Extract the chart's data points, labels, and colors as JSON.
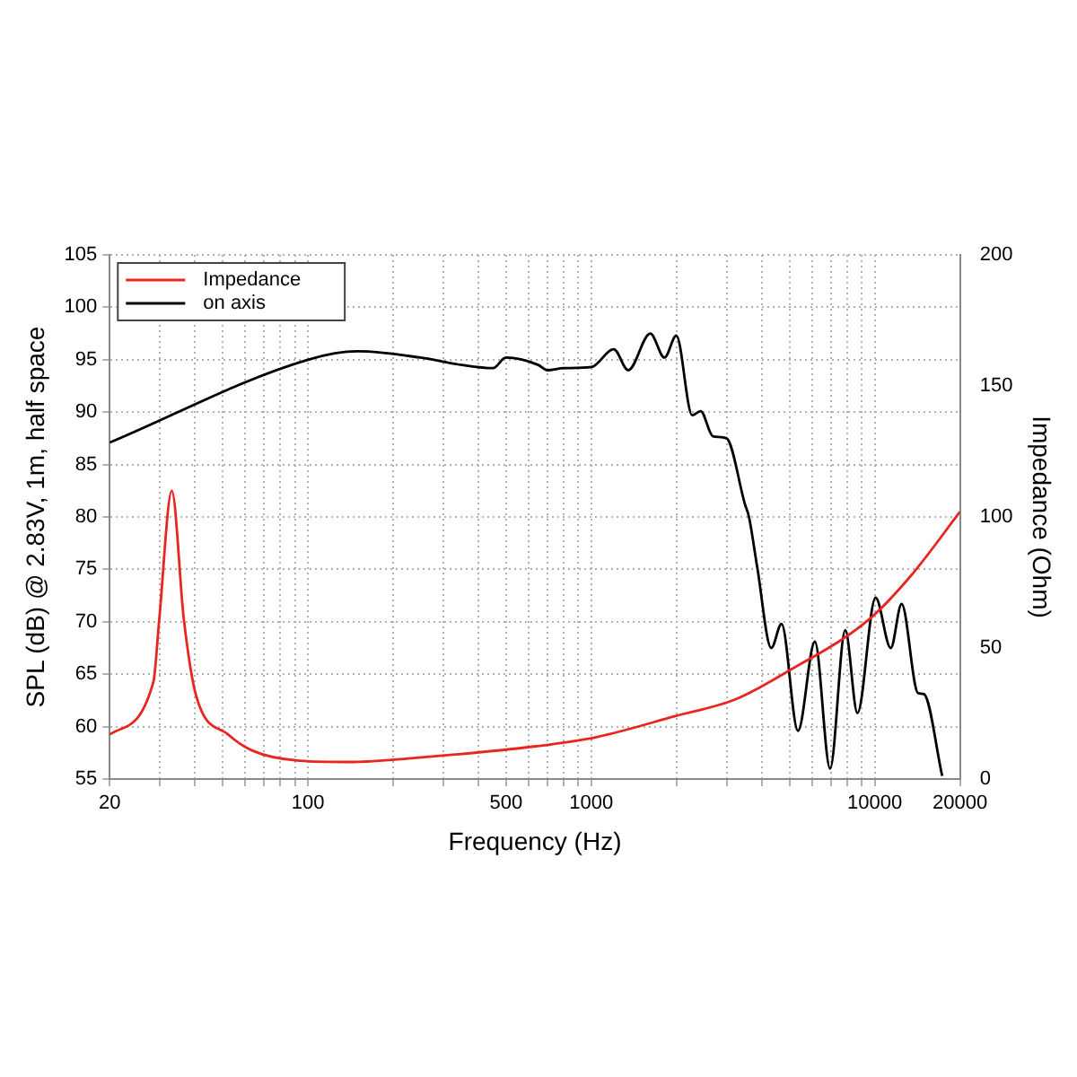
{
  "chart_data": {
    "type": "line",
    "xlabel": "Frequency (Hz)",
    "ylabel": "SPL (dB) @ 2.83V, 1m, half space",
    "y2label": "Impedance (Ohm)",
    "log": "x",
    "grid": true,
    "legend": "top left",
    "marker": "none",
    "line_style": "solid",
    "xlim": [
      20,
      20000
    ],
    "xticks": [
      20,
      {
        "value": 30,
        "label": null
      },
      {
        "value": 40,
        "label": null
      },
      {
        "value": 50,
        "label": null
      },
      {
        "value": 60,
        "label": null
      },
      {
        "value": 70,
        "label": null
      },
      {
        "value": 80,
        "label": null
      },
      {
        "value": 90,
        "label": null
      },
      100,
      {
        "value": 200,
        "label": null
      },
      {
        "value": 300,
        "label": null
      },
      {
        "value": 400,
        "label": null
      },
      500,
      {
        "value": 600,
        "label": null
      },
      {
        "value": 700,
        "label": null
      },
      {
        "value": 800,
        "label": null
      },
      {
        "value": 900,
        "label": null
      },
      1000,
      {
        "value": 2000,
        "label": null
      },
      {
        "value": 3000,
        "label": null
      },
      {
        "value": 4000,
        "label": null
      },
      {
        "value": 5000,
        "label": null
      },
      {
        "value": 6000,
        "label": null
      },
      {
        "value": 7000,
        "label": null
      },
      {
        "value": 8000,
        "label": null
      },
      {
        "value": 9000,
        "label": null
      },
      10000,
      20000
    ],
    "ylim": [
      55,
      105
    ],
    "yticks": [
      55,
      60,
      65,
      70,
      75,
      80,
      85,
      90,
      95,
      100,
      105
    ],
    "y2lim": [
      0,
      200
    ],
    "y2ticks": [
      0,
      50,
      100,
      150,
      200
    ],
    "series": [
      {
        "name": "Impedance",
        "color": "#e8251f",
        "axis": "y2",
        "x": [
          20,
          28.5,
          29.9,
          33.1,
          36.5,
          40.3,
          52.3,
          63.2,
          93.2,
          145,
          236,
          637,
          1042,
          1977,
          3240,
          4925,
          9570,
          13520,
          20000
        ],
        "values": [
          17,
          37,
          61,
          110,
          61,
          32,
          17,
          11,
          7,
          6.5,
          8,
          12.5,
          16,
          24,
          30.5,
          41,
          61,
          78,
          102
        ]
      },
      {
        "name": "on axis",
        "color": "#000000",
        "x": [
          20,
          100,
          150,
          250,
          350,
          450,
          500,
          650,
          700,
          800,
          1000,
          1200,
          1350,
          1615,
          1812,
          1995,
          2270,
          2430,
          2685,
          3000,
          3485,
          3600,
          3850,
          4315,
          4690,
          5360,
          6150,
          6960,
          7870,
          8690,
          10070,
          11390,
          12440,
          14210,
          14910,
          17300
        ],
        "values": [
          87.1,
          95,
          95.8,
          95.2,
          94.5,
          94.2,
          95.2,
          94.5,
          94,
          94.2,
          94.3,
          96,
          94,
          97.5,
          95.2,
          97.3,
          89.7,
          90.1,
          87.7,
          87.5,
          81.2,
          80,
          75.2,
          67.5,
          69.8,
          59.6,
          68.1,
          56,
          69.2,
          61.3,
          72.3,
          67.5,
          71.7,
          63.2,
          63.1,
          55.3
        ]
      }
    ]
  }
}
